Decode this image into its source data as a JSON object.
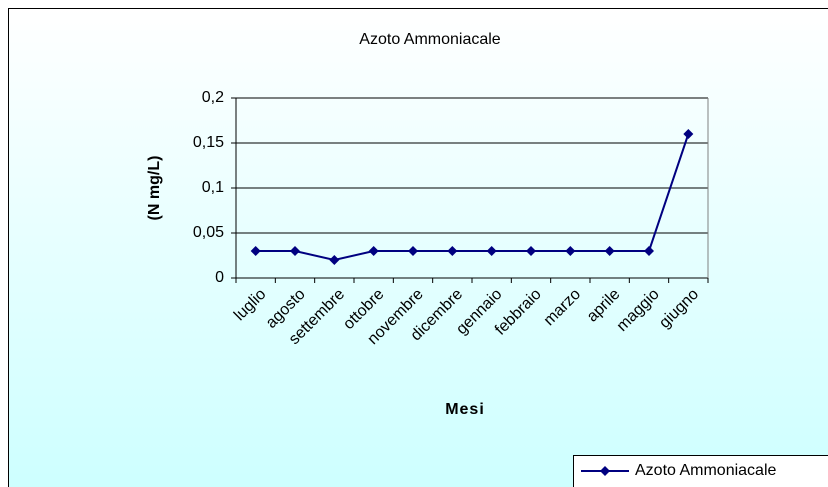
{
  "chart_data": {
    "type": "line",
    "title": "Azoto Ammoniacale",
    "x_label": "Mesi",
    "y_label": "(N mg/L)",
    "categories": [
      "luglio",
      "agosto",
      "settembre",
      "ottobre",
      "novembre",
      "dicembre",
      "gennaio",
      "febbraio",
      "marzo",
      "aprile",
      "maggio",
      "giugno"
    ],
    "series": [
      {
        "name": "Azoto Ammoniacale",
        "color": "#000080",
        "values": [
          0.03,
          0.03,
          0.02,
          0.03,
          0.03,
          0.03,
          0.03,
          0.03,
          0.03,
          0.03,
          0.03,
          0.16
        ]
      }
    ],
    "ylim": [
      0,
      0.2
    ],
    "yticks": [
      {
        "value": 0,
        "label": "0"
      },
      {
        "value": 0.05,
        "label": "0,05"
      },
      {
        "value": 0.1,
        "label": "0,1"
      },
      {
        "value": 0.15,
        "label": "0,15"
      },
      {
        "value": 0.2,
        "label": "0,2"
      }
    ],
    "grid": true,
    "legend": "bottom-right"
  }
}
